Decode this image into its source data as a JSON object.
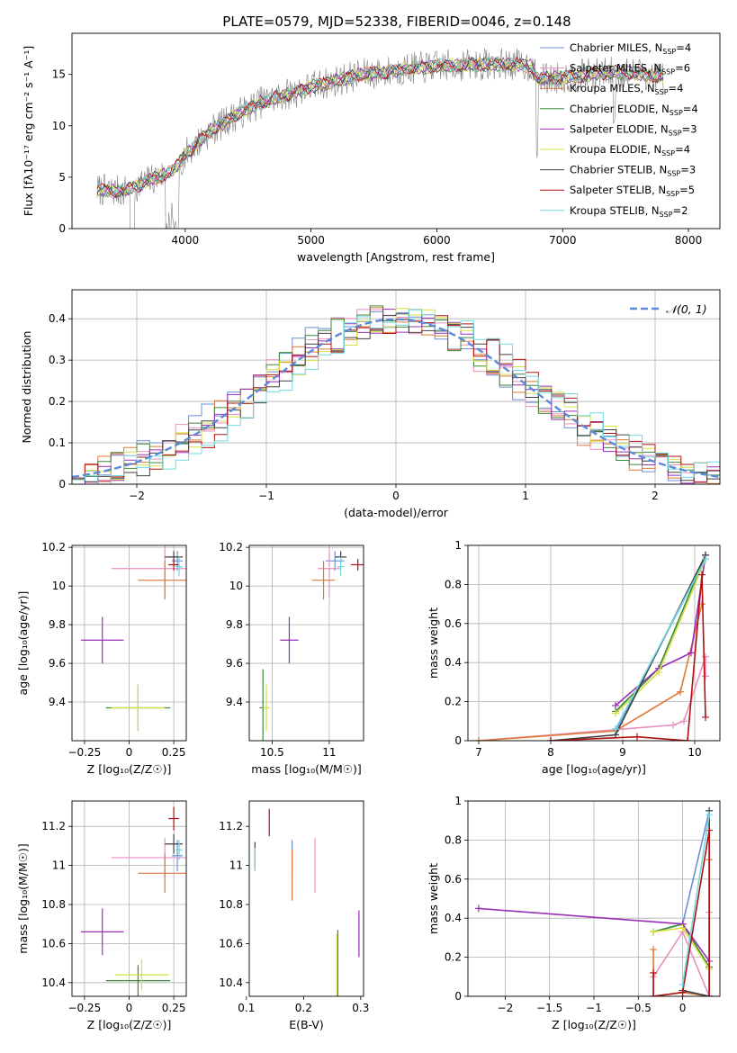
{
  "figure_title": "PLATE=0579, MJD=52338, FIBERID=0046, z=0.148",
  "colors": {
    "Chabrier MILES": "#6b8fd6",
    "Salpeter MILES": "#e890c0",
    "Kroupa MILES": "#e07838",
    "Chabrier ELODIE": "#3a8a3a",
    "Salpeter ELODIE": "#9a30b8",
    "Kroupa ELODIE": "#d6e040",
    "Chabrier STELIB": "#404040",
    "Salpeter STELIB": "#b01010",
    "Kroupa STELIB": "#70d8e0",
    "observed": "#808080",
    "normal": "#5b8ad8"
  },
  "chart_data": [
    {
      "type": "line",
      "panel": "spectrum",
      "title": "PLATE=0579, MJD=52338, FIBERID=0046, z=0.148",
      "xlabel": "wavelength [Angstrom, rest frame]",
      "ylabel": "Flux [fλ10⁻¹⁷ erg cm⁻² s⁻¹ A⁻¹]",
      "xlim": [
        3100,
        8250
      ],
      "ylim": [
        0,
        19
      ],
      "xticks": [
        4000,
        5000,
        6000,
        7000,
        8000
      ],
      "yticks": [
        0,
        5,
        10,
        15
      ],
      "legend": "upper-right",
      "legend_entries": [
        {
          "label": "Chabrier MILES, N",
          "sub": "SSP",
          "tail": "=4",
          "series": "Chabrier MILES"
        },
        {
          "label": "Salpeter MILES, N",
          "sub": "SSP",
          "tail": "=6",
          "series": "Salpeter MILES"
        },
        {
          "label": "Kroupa MILES, N",
          "sub": "SSP",
          "tail": "=4",
          "series": "Kroupa MILES"
        },
        {
          "label": "Chabrier ELODIE, N",
          "sub": "SSP",
          "tail": "=4",
          "series": "Chabrier ELODIE"
        },
        {
          "label": "Salpeter ELODIE, N",
          "sub": "SSP",
          "tail": "=3",
          "series": "Salpeter ELODIE"
        },
        {
          "label": "Kroupa ELODIE, N",
          "sub": "SSP",
          "tail": "=4",
          "series": "Kroupa ELODIE"
        },
        {
          "label": "Chabrier STELIB, N",
          "sub": "SSP",
          "tail": "=3",
          "series": "Chabrier STELIB"
        },
        {
          "label": "Salpeter STELIB, N",
          "sub": "SSP",
          "tail": "=5",
          "series": "Salpeter STELIB"
        },
        {
          "label": "Kroupa STELIB, N",
          "sub": "SSP",
          "tail": "=2",
          "series": "Kroupa STELIB"
        }
      ],
      "continuum": {
        "x": [
          3300,
          3500,
          3700,
          3900,
          4000,
          4200,
          4400,
          4600,
          4800,
          5000,
          5200,
          5400,
          5600,
          5800,
          6000,
          6200,
          6400,
          6600,
          6750,
          6800,
          7000,
          7200,
          7400,
          7600,
          7800
        ],
        "y": [
          3.8,
          3.6,
          4.6,
          5.6,
          7.2,
          9.5,
          11.0,
          12.3,
          13.0,
          13.8,
          14.4,
          15.0,
          15.2,
          15.6,
          15.8,
          15.9,
          16.0,
          16.0,
          15.8,
          14.5,
          14.7,
          15.0,
          15.2,
          15.1,
          14.8
        ]
      }
    },
    {
      "type": "line",
      "panel": "residual-histogram",
      "xlabel": "(data-model)/error",
      "ylabel": "Normed distribution",
      "xlim": [
        -2.5,
        2.5
      ],
      "ylim": [
        0,
        0.47
      ],
      "xticks": [
        -2,
        -1,
        0,
        1,
        2
      ],
      "yticks": [
        0.0,
        0.1,
        0.2,
        0.3,
        0.4
      ],
      "grid": true,
      "legend": "upper-right",
      "normal_label": "𝒩(0, 1)"
    },
    {
      "type": "scatter",
      "panel": "age-vs-Z",
      "xlabel": "Z [log₁₀(Z/Z☉)]",
      "ylabel": "age  [log₁₀(age/yr)]",
      "xlim": [
        -0.32,
        0.32
      ],
      "ylim": [
        9.2,
        10.21
      ],
      "xticks": [
        -0.25,
        0.0,
        0.25
      ],
      "yticks": [
        9.4,
        9.6,
        9.8,
        10.0,
        10.2
      ],
      "grid": true,
      "points": [
        {
          "series": "Chabrier MILES",
          "x": 0.27,
          "y": 10.13,
          "xerr": 0.03,
          "yerr": 0.05
        },
        {
          "series": "Salpeter MILES",
          "x": 0.2,
          "y": 10.09,
          "xerr": 0.3,
          "yerr": 0.15
        },
        {
          "series": "Kroupa MILES",
          "x": 0.2,
          "y": 10.03,
          "xerr": 0.15,
          "yerr": 0.1
        },
        {
          "series": "Chabrier ELODIE",
          "x": 0.05,
          "y": 9.37,
          "xerr": 0.18,
          "yerr": 0.12
        },
        {
          "series": "Salpeter ELODIE",
          "x": -0.15,
          "y": 9.72,
          "xerr": 0.12,
          "yerr": 0.12
        },
        {
          "series": "Kroupa ELODIE",
          "x": 0.05,
          "y": 9.37,
          "xerr": 0.15,
          "yerr": 0.12
        },
        {
          "series": "Chabrier STELIB",
          "x": 0.25,
          "y": 10.15,
          "xerr": 0.05,
          "yerr": 0.03
        },
        {
          "series": "Salpeter STELIB",
          "x": 0.25,
          "y": 10.11,
          "xerr": 0.03,
          "yerr": 0.03
        },
        {
          "series": "Kroupa STELIB",
          "x": 0.28,
          "y": 10.1,
          "xerr": 0.02,
          "yerr": 0.05
        }
      ]
    },
    {
      "type": "scatter",
      "panel": "age-vs-mass",
      "xlabel": "mass [log₁₀(M/M☉)]",
      "xlim": [
        10.3,
        11.3
      ],
      "ylim": [
        9.2,
        10.21
      ],
      "xticks": [
        10.5,
        11.0
      ],
      "yticks": [
        9.4,
        9.6,
        9.8,
        10.0,
        10.2
      ],
      "grid": true,
      "points": [
        {
          "series": "Chabrier MILES",
          "x": 11.05,
          "y": 10.13,
          "xerr": 0.08,
          "yerr": 0.05
        },
        {
          "series": "Salpeter MILES",
          "x": 11.0,
          "y": 10.09,
          "xerr": 0.1,
          "yerr": 0.15
        },
        {
          "series": "Kroupa MILES",
          "x": 10.95,
          "y": 10.03,
          "xerr": 0.1,
          "yerr": 0.1
        },
        {
          "series": "Chabrier ELODIE",
          "x": 10.42,
          "y": 9.37,
          "xerr": 0.03,
          "yerr": 0.2
        },
        {
          "series": "Salpeter ELODIE",
          "x": 10.65,
          "y": 9.72,
          "xerr": 0.08,
          "yerr": 0.12
        },
        {
          "series": "Kroupa ELODIE",
          "x": 10.45,
          "y": 9.37,
          "xerr": 0.03,
          "yerr": 0.12
        },
        {
          "series": "Chabrier STELIB",
          "x": 11.1,
          "y": 10.15,
          "xerr": 0.05,
          "yerr": 0.03
        },
        {
          "series": "Salpeter STELIB",
          "x": 11.25,
          "y": 10.11,
          "xerr": 0.06,
          "yerr": 0.03
        },
        {
          "series": "Kroupa STELIB",
          "x": 11.1,
          "y": 10.1,
          "xerr": 0.03,
          "yerr": 0.05
        }
      ]
    },
    {
      "type": "line",
      "panel": "mass-weight-vs-age",
      "xlabel": "age  [log₁₀(age/yr)]",
      "ylabel": "mass weight",
      "xlim": [
        6.85,
        10.35
      ],
      "ylim": [
        0,
        1.0
      ],
      "xticks": [
        7,
        8,
        9,
        10
      ],
      "yticks": [
        0.0,
        0.2,
        0.4,
        0.6,
        0.8,
        1.0
      ],
      "grid": true,
      "series": [
        {
          "name": "Chabrier MILES",
          "x": [
            8.9,
            10.15
          ],
          "y": [
            0.05,
            0.93
          ]
        },
        {
          "name": "Salpeter MILES",
          "x": [
            7.0,
            9.7,
            9.85,
            10.15,
            10.15
          ],
          "y": [
            0.0,
            0.08,
            0.1,
            0.43,
            0.33
          ]
        },
        {
          "name": "Kroupa MILES",
          "x": [
            7.0,
            8.9,
            9.8,
            10.1
          ],
          "y": [
            0.0,
            0.05,
            0.25,
            0.7
          ]
        },
        {
          "name": "Chabrier ELODIE",
          "x": [
            8.9,
            9.5,
            10.15
          ],
          "y": [
            0.15,
            0.37,
            0.95
          ]
        },
        {
          "name": "Salpeter ELODIE",
          "x": [
            8.9,
            9.5,
            9.95,
            10.15
          ],
          "y": [
            0.18,
            0.37,
            0.45,
            0.95
          ]
        },
        {
          "name": "Kroupa ELODIE",
          "x": [
            8.9,
            9.5,
            10.15
          ],
          "y": [
            0.14,
            0.35,
            0.93
          ]
        },
        {
          "name": "Chabrier STELIB",
          "x": [
            8.0,
            8.9,
            10.15
          ],
          "y": [
            0.0,
            0.03,
            0.95
          ]
        },
        {
          "name": "Salpeter STELIB",
          "x": [
            8.0,
            9.2,
            9.9,
            10.1,
            10.15
          ],
          "y": [
            0.0,
            0.02,
            0.0,
            0.85,
            0.12
          ]
        },
        {
          "name": "Kroupa STELIB",
          "x": [
            8.9,
            10.15
          ],
          "y": [
            0.06,
            0.93
          ]
        }
      ]
    },
    {
      "type": "scatter",
      "panel": "mass-vs-Z",
      "xlabel": "Z [log₁₀(Z/Z☉)]",
      "ylabel": "mass [log₁₀(M/M☉)]",
      "xlim": [
        -0.32,
        0.32
      ],
      "ylim": [
        10.33,
        11.33
      ],
      "xticks": [
        -0.25,
        0.0,
        0.25
      ],
      "yticks": [
        10.4,
        10.6,
        10.8,
        11.0,
        11.2
      ],
      "grid": true,
      "points": [
        {
          "series": "Chabrier MILES",
          "x": 0.27,
          "y": 11.05,
          "xerr": 0.03,
          "yerr": 0.08
        },
        {
          "series": "Salpeter MILES",
          "x": 0.2,
          "y": 11.04,
          "xerr": 0.3,
          "yerr": 0.1
        },
        {
          "series": "Kroupa MILES",
          "x": 0.2,
          "y": 10.96,
          "xerr": 0.15,
          "yerr": 0.1
        },
        {
          "series": "Chabrier ELODIE",
          "x": 0.05,
          "y": 10.41,
          "xerr": 0.18,
          "yerr": 0.08
        },
        {
          "series": "Salpeter ELODIE",
          "x": -0.15,
          "y": 10.66,
          "xerr": 0.12,
          "yerr": 0.12
        },
        {
          "series": "Kroupa ELODIE",
          "x": 0.07,
          "y": 10.44,
          "xerr": 0.15,
          "yerr": 0.08
        },
        {
          "series": "Chabrier STELIB",
          "x": 0.25,
          "y": 11.11,
          "xerr": 0.05,
          "yerr": 0.05
        },
        {
          "series": "Salpeter STELIB",
          "x": 0.25,
          "y": 11.24,
          "xerr": 0.03,
          "yerr": 0.06
        },
        {
          "series": "Kroupa STELIB",
          "x": 0.28,
          "y": 11.08,
          "xerr": 0.02,
          "yerr": 0.05
        }
      ]
    },
    {
      "type": "scatter",
      "panel": "mass-vs-EBV",
      "xlabel": "E(B-V)",
      "xlim": [
        0.105,
        0.305
      ],
      "ylim": [
        10.33,
        11.33
      ],
      "xticks": [
        0.1,
        0.2,
        0.3
      ],
      "yticks": [
        10.4,
        10.6,
        10.8,
        11.0,
        11.2
      ],
      "grid": false,
      "points": [
        {
          "series": "Chabrier MILES",
          "x": 0.18,
          "y": 11.05,
          "xerr": 0.0,
          "yerr": 0.08
        },
        {
          "series": "Salpeter MILES",
          "x": 0.22,
          "y": 11.0,
          "xerr": 0.0,
          "yerr": 0.14
        },
        {
          "series": "Kroupa MILES",
          "x": 0.18,
          "y": 10.95,
          "xerr": 0.0,
          "yerr": 0.13
        },
        {
          "series": "Chabrier ELODIE",
          "x": 0.26,
          "y": 10.5,
          "xerr": 0.0,
          "yerr": 0.17
        },
        {
          "series": "Salpeter ELODIE",
          "x": 0.297,
          "y": 10.65,
          "xerr": 0.0,
          "yerr": 0.12
        },
        {
          "series": "Kroupa ELODIE",
          "x": 0.258,
          "y": 10.48,
          "xerr": 0.0,
          "yerr": 0.17
        },
        {
          "series": "Chabrier STELIB",
          "x": 0.115,
          "y": 11.05,
          "xerr": 0.0,
          "yerr": 0.07
        },
        {
          "series": "Salpeter STELIB",
          "x": 0.14,
          "y": 11.22,
          "xerr": 0.0,
          "yerr": 0.07
        },
        {
          "series": "Kroupa STELIB",
          "x": 0.115,
          "y": 11.03,
          "xerr": 0.0,
          "yerr": 0.06
        }
      ]
    },
    {
      "type": "line",
      "panel": "mass-weight-vs-Z",
      "xlabel": "Z [log₁₀(Z/Z☉)]",
      "ylabel": "mass weight",
      "xlim": [
        -2.42,
        0.42
      ],
      "ylim": [
        0,
        1.0
      ],
      "xticks": [
        -2.0,
        -1.5,
        -1.0,
        -0.5,
        0.0
      ],
      "yticks": [
        0.0,
        0.2,
        0.4,
        0.6,
        0.8,
        1.0
      ],
      "grid": true,
      "series": [
        {
          "name": "Chabrier MILES",
          "x": [
            -0.33,
            0.0,
            0.3
          ],
          "y": [
            0.33,
            0.37,
            0.95
          ]
        },
        {
          "name": "Salpeter MILES",
          "x": [
            -0.33,
            0.0,
            0.3,
            0.3
          ],
          "y": [
            0.1,
            0.33,
            0.0,
            0.43
          ]
        },
        {
          "name": "Kroupa MILES",
          "x": [
            -0.33,
            -0.33,
            0.0,
            0.3,
            0.3
          ],
          "y": [
            0.24,
            0.0,
            0.02,
            0.0,
            0.7
          ]
        },
        {
          "name": "Chabrier ELODIE",
          "x": [
            -0.33,
            0.0,
            0.3
          ],
          "y": [
            0.33,
            0.37,
            0.15
          ]
        },
        {
          "name": "Salpeter ELODIE",
          "x": [
            -2.3,
            0.0,
            0.3
          ],
          "y": [
            0.45,
            0.37,
            0.18
          ]
        },
        {
          "name": "Kroupa ELODIE",
          "x": [
            -0.33,
            0.0,
            0.3
          ],
          "y": [
            0.33,
            0.35,
            0.14
          ]
        },
        {
          "name": "Chabrier STELIB",
          "x": [
            0.0,
            0.3,
            0.3
          ],
          "y": [
            0.03,
            0.0,
            0.95
          ]
        },
        {
          "name": "Salpeter STELIB",
          "x": [
            -0.33,
            -0.33,
            0.0,
            0.3,
            0.3
          ],
          "y": [
            0.12,
            0.0,
            0.02,
            0.85,
            0.0
          ]
        },
        {
          "name": "Kroupa STELIB",
          "x": [
            0.0,
            0.3
          ],
          "y": [
            0.06,
            0.93
          ]
        }
      ]
    }
  ]
}
